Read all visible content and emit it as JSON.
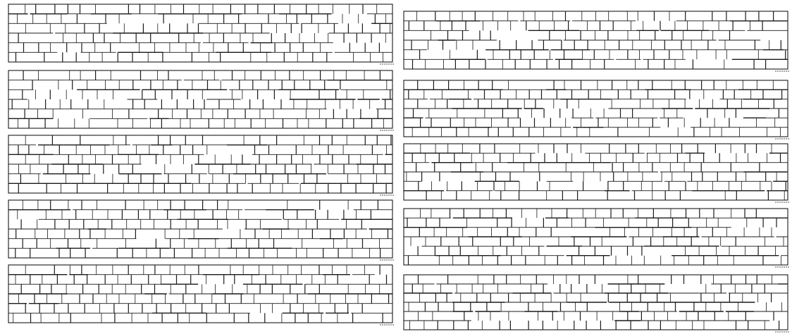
{
  "image": {
    "background_color": "#ffffff",
    "ink_color": "#1a1a1a",
    "panel_count": 10,
    "columns": 2,
    "rows_of_panels": 5,
    "panels": [
      {
        "id": "left-1",
        "rows": 6,
        "cells_per_row": 26
      },
      {
        "id": "left-2",
        "rows": 6,
        "cells_per_row": 26
      },
      {
        "id": "left-3",
        "rows": 6,
        "cells_per_row": 26
      },
      {
        "id": "left-4",
        "rows": 6,
        "cells_per_row": 26
      },
      {
        "id": "left-5",
        "rows": 6,
        "cells_per_row": 26
      },
      {
        "id": "right-1",
        "rows": 6,
        "cells_per_row": 26
      },
      {
        "id": "right-2",
        "rows": 6,
        "cells_per_row": 26
      },
      {
        "id": "right-3",
        "rows": 6,
        "cells_per_row": 26
      },
      {
        "id": "right-4",
        "rows": 6,
        "cells_per_row": 26
      },
      {
        "id": "right-5",
        "rows": 6,
        "cells_per_row": 26
      }
    ]
  }
}
